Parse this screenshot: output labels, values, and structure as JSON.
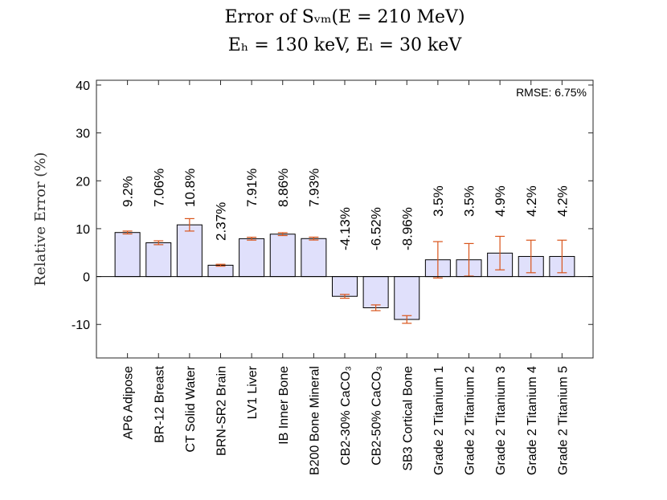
{
  "chart_data": {
    "type": "bar",
    "title_line1": "Error of Sᵥₘ(E = 210 MeV)",
    "title_line2": "Eₕ = 130 keV,  Eₗ = 30 keV",
    "ylabel": "Relative Error (%)",
    "xlabel": "",
    "ylim": [
      -17,
      41
    ],
    "yticks": [
      -10,
      0,
      10,
      20,
      30,
      40
    ],
    "annotation": "RMSE: 6.75%",
    "categories": [
      "AP6 Adipose",
      "BR-12 Breast",
      "CT Solid Water",
      "BRN-SR2 Brain",
      "LV1 Liver",
      "IB Inner Bone",
      "B200 Bone Mineral",
      "CB2-30% CaCO₃",
      "CB2-50% CaCO₃",
      "SB3 Cortical Bone",
      "Grade 2 Titanium 1",
      "Grade 2 Titanium 2",
      "Grade 2 Titanium 3",
      "Grade 2 Titanium 4",
      "Grade 2 Titanium 5"
    ],
    "values": [
      9.2,
      7.06,
      10.8,
      2.37,
      7.91,
      8.86,
      7.93,
      -4.13,
      -6.52,
      -8.96,
      3.5,
      3.5,
      4.9,
      4.2,
      4.2
    ],
    "value_labels": [
      "9.2%",
      "7.06%",
      "10.8%",
      "2.37%",
      "7.91%",
      "8.86%",
      "7.93%",
      "-4.13%",
      "-6.52%",
      "-8.96%",
      "3.5%",
      "3.5%",
      "4.9%",
      "4.2%",
      "4.2%"
    ],
    "errors": [
      0.3,
      0.4,
      1.3,
      0.2,
      0.3,
      0.3,
      0.3,
      0.4,
      0.6,
      0.8,
      3.8,
      3.4,
      3.5,
      3.4,
      3.4
    ],
    "bar_color": "#e0e0fb",
    "error_color": "#d9541a"
  }
}
